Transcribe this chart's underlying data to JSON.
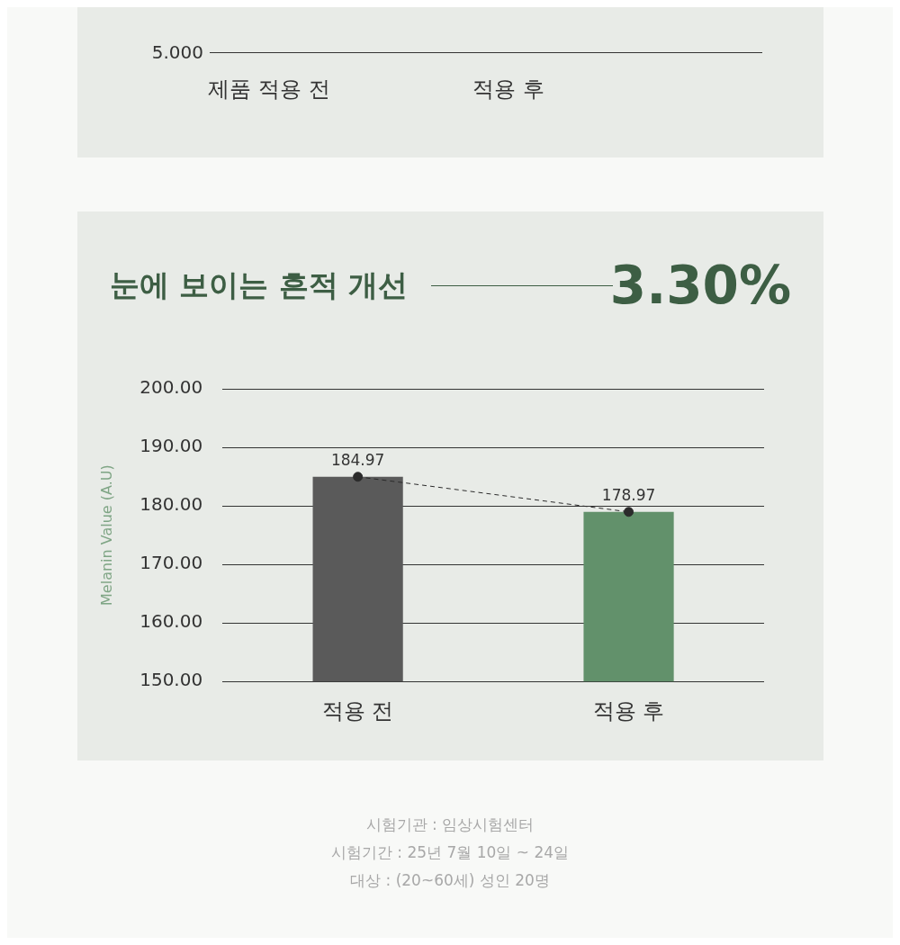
{
  "chart_data": [
    {
      "type": "other",
      "annotations": [
        "5.000",
        "제품 적용 전",
        "적용 후"
      ]
    },
    {
      "type": "bar",
      "title": "눈에 보이는 흔적 개선",
      "ylabel": "Melanin Value (A.U)",
      "annotations": [
        "3.30%",
        "시험기관 : 임상시험센터",
        "시험기간 : 25년 7월 10일 ~ 24일",
        "대상 : (20~60세) 성인 20명"
      ],
      "categories": [
        "적용 전",
        "적용 후"
      ],
      "series": [
        {
          "type": "bar",
          "colors": [
            "#5a5a5a",
            "#62916b"
          ],
          "values": [
            184.97,
            178.97
          ]
        },
        {
          "type": "line",
          "color": "#2b2b2b",
          "values": [
            184.97,
            178.97
          ],
          "value_labels": [
            "184.97",
            "178.97"
          ],
          "line_style": "dashed",
          "marker": "circle"
        }
      ],
      "ylim": [
        150,
        200
      ],
      "yticks": [
        {
          "value": 150,
          "label": "150.00"
        },
        {
          "value": 160,
          "label": "160.00"
        },
        {
          "value": 170,
          "label": "170.00"
        },
        {
          "value": 180,
          "label": "180.00"
        },
        {
          "value": 190,
          "label": "190.00"
        },
        {
          "value": 200,
          "label": "200.00"
        }
      ],
      "grid": "y"
    }
  ]
}
